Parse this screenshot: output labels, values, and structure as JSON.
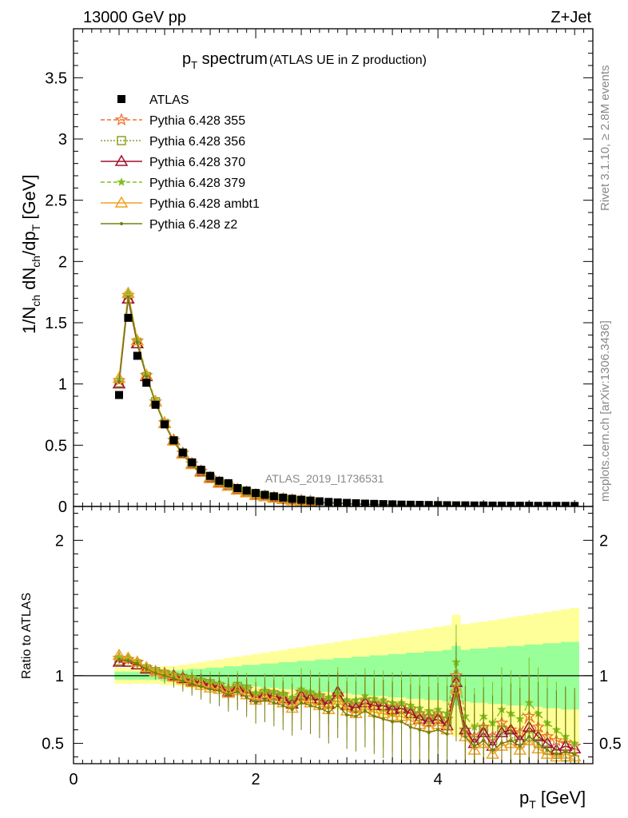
{
  "header": {
    "left": "13000 GeV pp",
    "right": "Z+Jet",
    "title_main": "p",
    "title_sub": "T",
    "title_word": " spectrum",
    "title_paren": "(ATLAS UE in Z production)",
    "analysis_id": "ATLAS_2019_I1736531"
  },
  "side_text": {
    "rivet": "Rivet 3.1.10, ≥ 2.8M events",
    "mcplots": "mcplots.cern.ch [arXiv:1306.3436]"
  },
  "axes": {
    "main_ylabel": "1/N_ch dN_ch/dp_T [GeV]",
    "ratio_ylabel": "Ratio to ATLAS",
    "xlabel": "p_T [GeV]",
    "x_ticks": [
      "0",
      "2",
      "4"
    ],
    "main_y_ticks": [
      "0",
      "0.5",
      "1",
      "1.5",
      "2",
      "2.5",
      "3",
      "3.5"
    ],
    "ratio_y_ticks": [
      "0.5",
      "1",
      "2"
    ]
  },
  "legend": [
    {
      "label": "ATLAS",
      "color": "#000000",
      "marker": "square-filled",
      "dash": ""
    },
    {
      "label": "Pythia 6.428 355",
      "color": "#f07030",
      "marker": "star-open",
      "dash": "5,3"
    },
    {
      "label": "Pythia 6.428 356",
      "color": "#8ca020",
      "marker": "square-open",
      "dash": "2,2"
    },
    {
      "label": "Pythia 6.428 370",
      "color": "#a01030",
      "marker": "triangle-open",
      "dash": ""
    },
    {
      "label": "Pythia 6.428 379",
      "color": "#80c020",
      "marker": "star-filled",
      "dash": "5,3"
    },
    {
      "label": "Pythia 6.428 ambt1",
      "color": "#f0a020",
      "marker": "triangle-open",
      "dash": ""
    },
    {
      "label": "Pythia 6.428 z2",
      "color": "#708010",
      "marker": "dot",
      "dash": ""
    }
  ],
  "chart_data": {
    "type": "scatter",
    "xlim": [
      0,
      5.7
    ],
    "ylim": [
      0,
      3.9
    ],
    "ratio_ylim": [
      0.35,
      2.25
    ],
    "x": [
      0.5,
      0.6,
      0.7,
      0.8,
      0.9,
      1.0,
      1.1,
      1.2,
      1.3,
      1.4,
      1.5,
      1.6,
      1.7,
      1.8,
      1.9,
      2.0,
      2.1,
      2.2,
      2.3,
      2.4,
      2.5,
      2.6,
      2.7,
      2.8,
      2.9,
      3.0,
      3.1,
      3.2,
      3.3,
      3.4,
      3.5,
      3.6,
      3.7,
      3.8,
      3.9,
      4.0,
      4.1,
      4.2,
      4.3,
      4.4,
      4.5,
      4.6,
      4.7,
      4.8,
      4.9,
      5.0,
      5.1,
      5.2,
      5.3,
      5.4,
      5.5
    ],
    "atlas": [
      0.91,
      1.54,
      1.23,
      1.01,
      0.83,
      0.67,
      0.54,
      0.44,
      0.36,
      0.3,
      0.25,
      0.21,
      0.19,
      0.15,
      0.13,
      0.11,
      0.095,
      0.083,
      0.072,
      0.063,
      0.055,
      0.048,
      0.042,
      0.037,
      0.033,
      0.029,
      0.026,
      0.023,
      0.021,
      0.019,
      0.017,
      0.015,
      0.014,
      0.013,
      0.012,
      0.011,
      0.01,
      0.009,
      0.009,
      0.008,
      0.008,
      0.007,
      0.007,
      0.006,
      0.006,
      0.006,
      0.005,
      0.005,
      0.005,
      0.005,
      0.004
    ],
    "band_outer": [
      0.06,
      0.06,
      0.06,
      0.06,
      0.06,
      0.07,
      0.07,
      0.08,
      0.09,
      0.1,
      0.11,
      0.12,
      0.13,
      0.14,
      0.15,
      0.16,
      0.17,
      0.18,
      0.19,
      0.2,
      0.21,
      0.22,
      0.23,
      0.24,
      0.25,
      0.26,
      0.27,
      0.28,
      0.29,
      0.3,
      0.31,
      0.32,
      0.33,
      0.34,
      0.35,
      0.36,
      0.37,
      0.45,
      0.38,
      0.39,
      0.4,
      0.41,
      0.42,
      0.43,
      0.44,
      0.45,
      0.46,
      0.47,
      0.48,
      0.49,
      0.5
    ],
    "band_inner": [
      0.03,
      0.03,
      0.03,
      0.03,
      0.03,
      0.04,
      0.04,
      0.04,
      0.05,
      0.05,
      0.06,
      0.06,
      0.07,
      0.07,
      0.08,
      0.08,
      0.09,
      0.09,
      0.1,
      0.1,
      0.11,
      0.11,
      0.12,
      0.12,
      0.13,
      0.13,
      0.14,
      0.14,
      0.15,
      0.15,
      0.16,
      0.16,
      0.17,
      0.17,
      0.18,
      0.18,
      0.19,
      0.22,
      0.19,
      0.2,
      0.2,
      0.21,
      0.21,
      0.22,
      0.22,
      0.23,
      0.23,
      0.24,
      0.24,
      0.25,
      0.25
    ],
    "series": [
      {
        "name": "Pythia 6.428 355",
        "ratio": [
          1.13,
          1.12,
          1.1,
          1.06,
          1.03,
          1.02,
          1.0,
          0.99,
          0.97,
          0.96,
          0.94,
          0.93,
          0.9,
          0.92,
          0.9,
          0.86,
          0.88,
          0.87,
          0.86,
          0.82,
          0.88,
          0.86,
          0.85,
          0.82,
          0.86,
          0.8,
          0.79,
          0.82,
          0.8,
          0.8,
          0.77,
          0.78,
          0.75,
          0.72,
          0.7,
          0.72,
          0.68,
          1.0,
          0.6,
          0.55,
          0.62,
          0.55,
          0.65,
          0.6,
          0.58,
          0.7,
          0.62,
          0.55,
          0.52,
          0.5,
          0.48
        ]
      },
      {
        "name": "Pythia 6.428 356",
        "ratio": [
          1.11,
          1.1,
          1.08,
          1.05,
          1.03,
          1.01,
          0.99,
          0.98,
          0.97,
          0.95,
          0.94,
          0.92,
          0.89,
          0.92,
          0.9,
          0.85,
          0.87,
          0.86,
          0.84,
          0.8,
          0.86,
          0.85,
          0.83,
          0.8,
          0.84,
          0.78,
          0.77,
          0.8,
          0.78,
          0.77,
          0.74,
          0.75,
          0.72,
          0.7,
          0.68,
          0.7,
          0.66,
          0.96,
          0.58,
          0.52,
          0.6,
          0.52,
          0.6,
          0.55,
          0.5,
          0.55,
          0.5,
          0.45,
          0.42,
          0.4,
          0.38
        ]
      },
      {
        "name": "Pythia 6.428 370",
        "ratio": [
          1.1,
          1.1,
          1.08,
          1.05,
          1.03,
          1.01,
          1.0,
          0.98,
          0.96,
          0.95,
          0.93,
          0.92,
          0.88,
          0.91,
          0.88,
          0.84,
          0.86,
          0.85,
          0.83,
          0.79,
          0.85,
          0.83,
          0.82,
          0.79,
          0.88,
          0.78,
          0.76,
          0.8,
          0.78,
          0.78,
          0.75,
          0.76,
          0.72,
          0.68,
          0.66,
          0.68,
          0.63,
          0.95,
          0.6,
          0.5,
          0.58,
          0.48,
          0.58,
          0.6,
          0.52,
          0.62,
          0.55,
          0.5,
          0.45,
          0.48,
          0.46
        ]
      },
      {
        "name": "Pythia 6.428 379",
        "ratio": [
          1.14,
          1.13,
          1.11,
          1.07,
          1.04,
          1.02,
          1.01,
          0.99,
          0.98,
          0.97,
          0.95,
          0.94,
          0.91,
          0.93,
          0.91,
          0.87,
          0.89,
          0.88,
          0.87,
          0.84,
          0.9,
          0.88,
          0.86,
          0.84,
          0.88,
          0.82,
          0.82,
          0.85,
          0.83,
          0.82,
          0.8,
          0.8,
          0.78,
          0.76,
          0.74,
          0.75,
          0.72,
          1.1,
          0.7,
          0.62,
          0.7,
          0.65,
          0.75,
          0.72,
          0.68,
          0.8,
          0.72,
          0.65,
          0.6,
          0.55,
          0.5
        ]
      },
      {
        "name": "Pythia 6.428 ambt1",
        "ratio": [
          1.15,
          1.13,
          1.1,
          1.06,
          1.03,
          1.01,
          0.99,
          0.97,
          0.95,
          0.93,
          0.91,
          0.9,
          0.87,
          0.89,
          0.86,
          0.82,
          0.84,
          0.82,
          0.8,
          0.76,
          0.82,
          0.8,
          0.78,
          0.75,
          0.82,
          0.74,
          0.72,
          0.76,
          0.73,
          0.72,
          0.7,
          0.7,
          0.67,
          0.64,
          0.62,
          0.64,
          0.6,
          0.9,
          0.55,
          0.45,
          0.5,
          0.42,
          0.48,
          0.5,
          0.45,
          0.52,
          0.46,
          0.42,
          0.4,
          0.42,
          0.4
        ]
      },
      {
        "name": "Pythia 6.428 z2",
        "ratio": [
          1.12,
          1.11,
          1.09,
          1.05,
          1.02,
          1.0,
          0.98,
          0.96,
          0.94,
          0.92,
          0.9,
          0.89,
          0.86,
          0.88,
          0.84,
          0.8,
          0.82,
          0.8,
          0.78,
          0.75,
          0.8,
          0.78,
          0.76,
          0.73,
          0.78,
          0.71,
          0.7,
          0.74,
          0.7,
          0.68,
          0.66,
          0.66,
          0.62,
          0.6,
          0.58,
          0.6,
          0.57,
          0.88,
          0.55,
          0.48,
          0.52,
          0.45,
          0.5,
          0.52,
          0.48,
          0.55,
          0.5,
          0.45,
          0.42,
          0.44,
          0.42
        ]
      }
    ]
  }
}
